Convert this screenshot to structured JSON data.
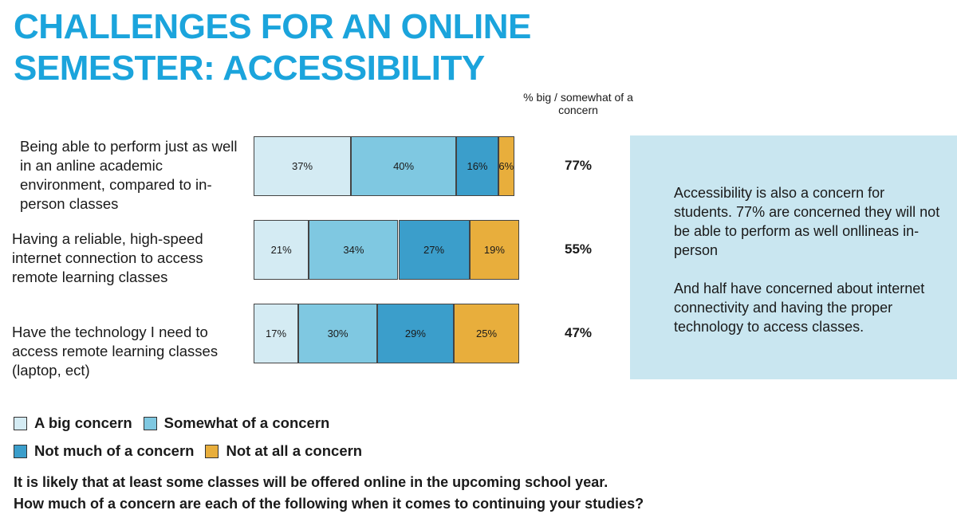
{
  "chart_data": {
    "type": "bar",
    "orientation": "horizontal",
    "stacked": true,
    "title": "CHALLENGES FOR AN ONLINE SEMESTER: ACCESSIBILITY",
    "categories": [
      "Being able to perform just as well in an anline academic environment, compared to in-person classes",
      "Having a reliable, high-speed internet connection to access remote learning classes",
      "Have the technology I need to access remote learning classes (laptop, ect)"
    ],
    "series": [
      {
        "name": "A big concern",
        "color": "#d4ebf3",
        "values": [
          37,
          21,
          17
        ],
        "value_labels": [
          "37%",
          "21%",
          "17%"
        ]
      },
      {
        "name": "Somewhat of a concern",
        "color": "#7fc8e1",
        "values": [
          40,
          34,
          30
        ],
        "value_labels": [
          "40%",
          "34%",
          "30%"
        ]
      },
      {
        "name": "Not much of a concern",
        "color": "#3b9ecb",
        "values": [
          16,
          27,
          29
        ],
        "value_labels": [
          "16%",
          "27%",
          "29%"
        ]
      },
      {
        "name": "Not at all a concern",
        "color": "#e8ae3c",
        "values": [
          6,
          19,
          25
        ],
        "value_labels": [
          "6%",
          "19%",
          "25%"
        ]
      }
    ],
    "totals": {
      "title": "% big / somewhat of a concern",
      "values": [
        77,
        55,
        47
      ],
      "value_labels": [
        "77%",
        "55%",
        "47%"
      ]
    },
    "note": [
      "Accessibility is also a concern for students. 77% are concerned they will not be able to perform as well onllineas in-person",
      "And half have concerned about internet connectivity and having the proper technology to access classes."
    ],
    "question": [
      "It is likely that at least some classes will be offered online in the upcoming school year.",
      "How much of a concern are each of the following when it comes to continuing your studies?"
    ]
  }
}
